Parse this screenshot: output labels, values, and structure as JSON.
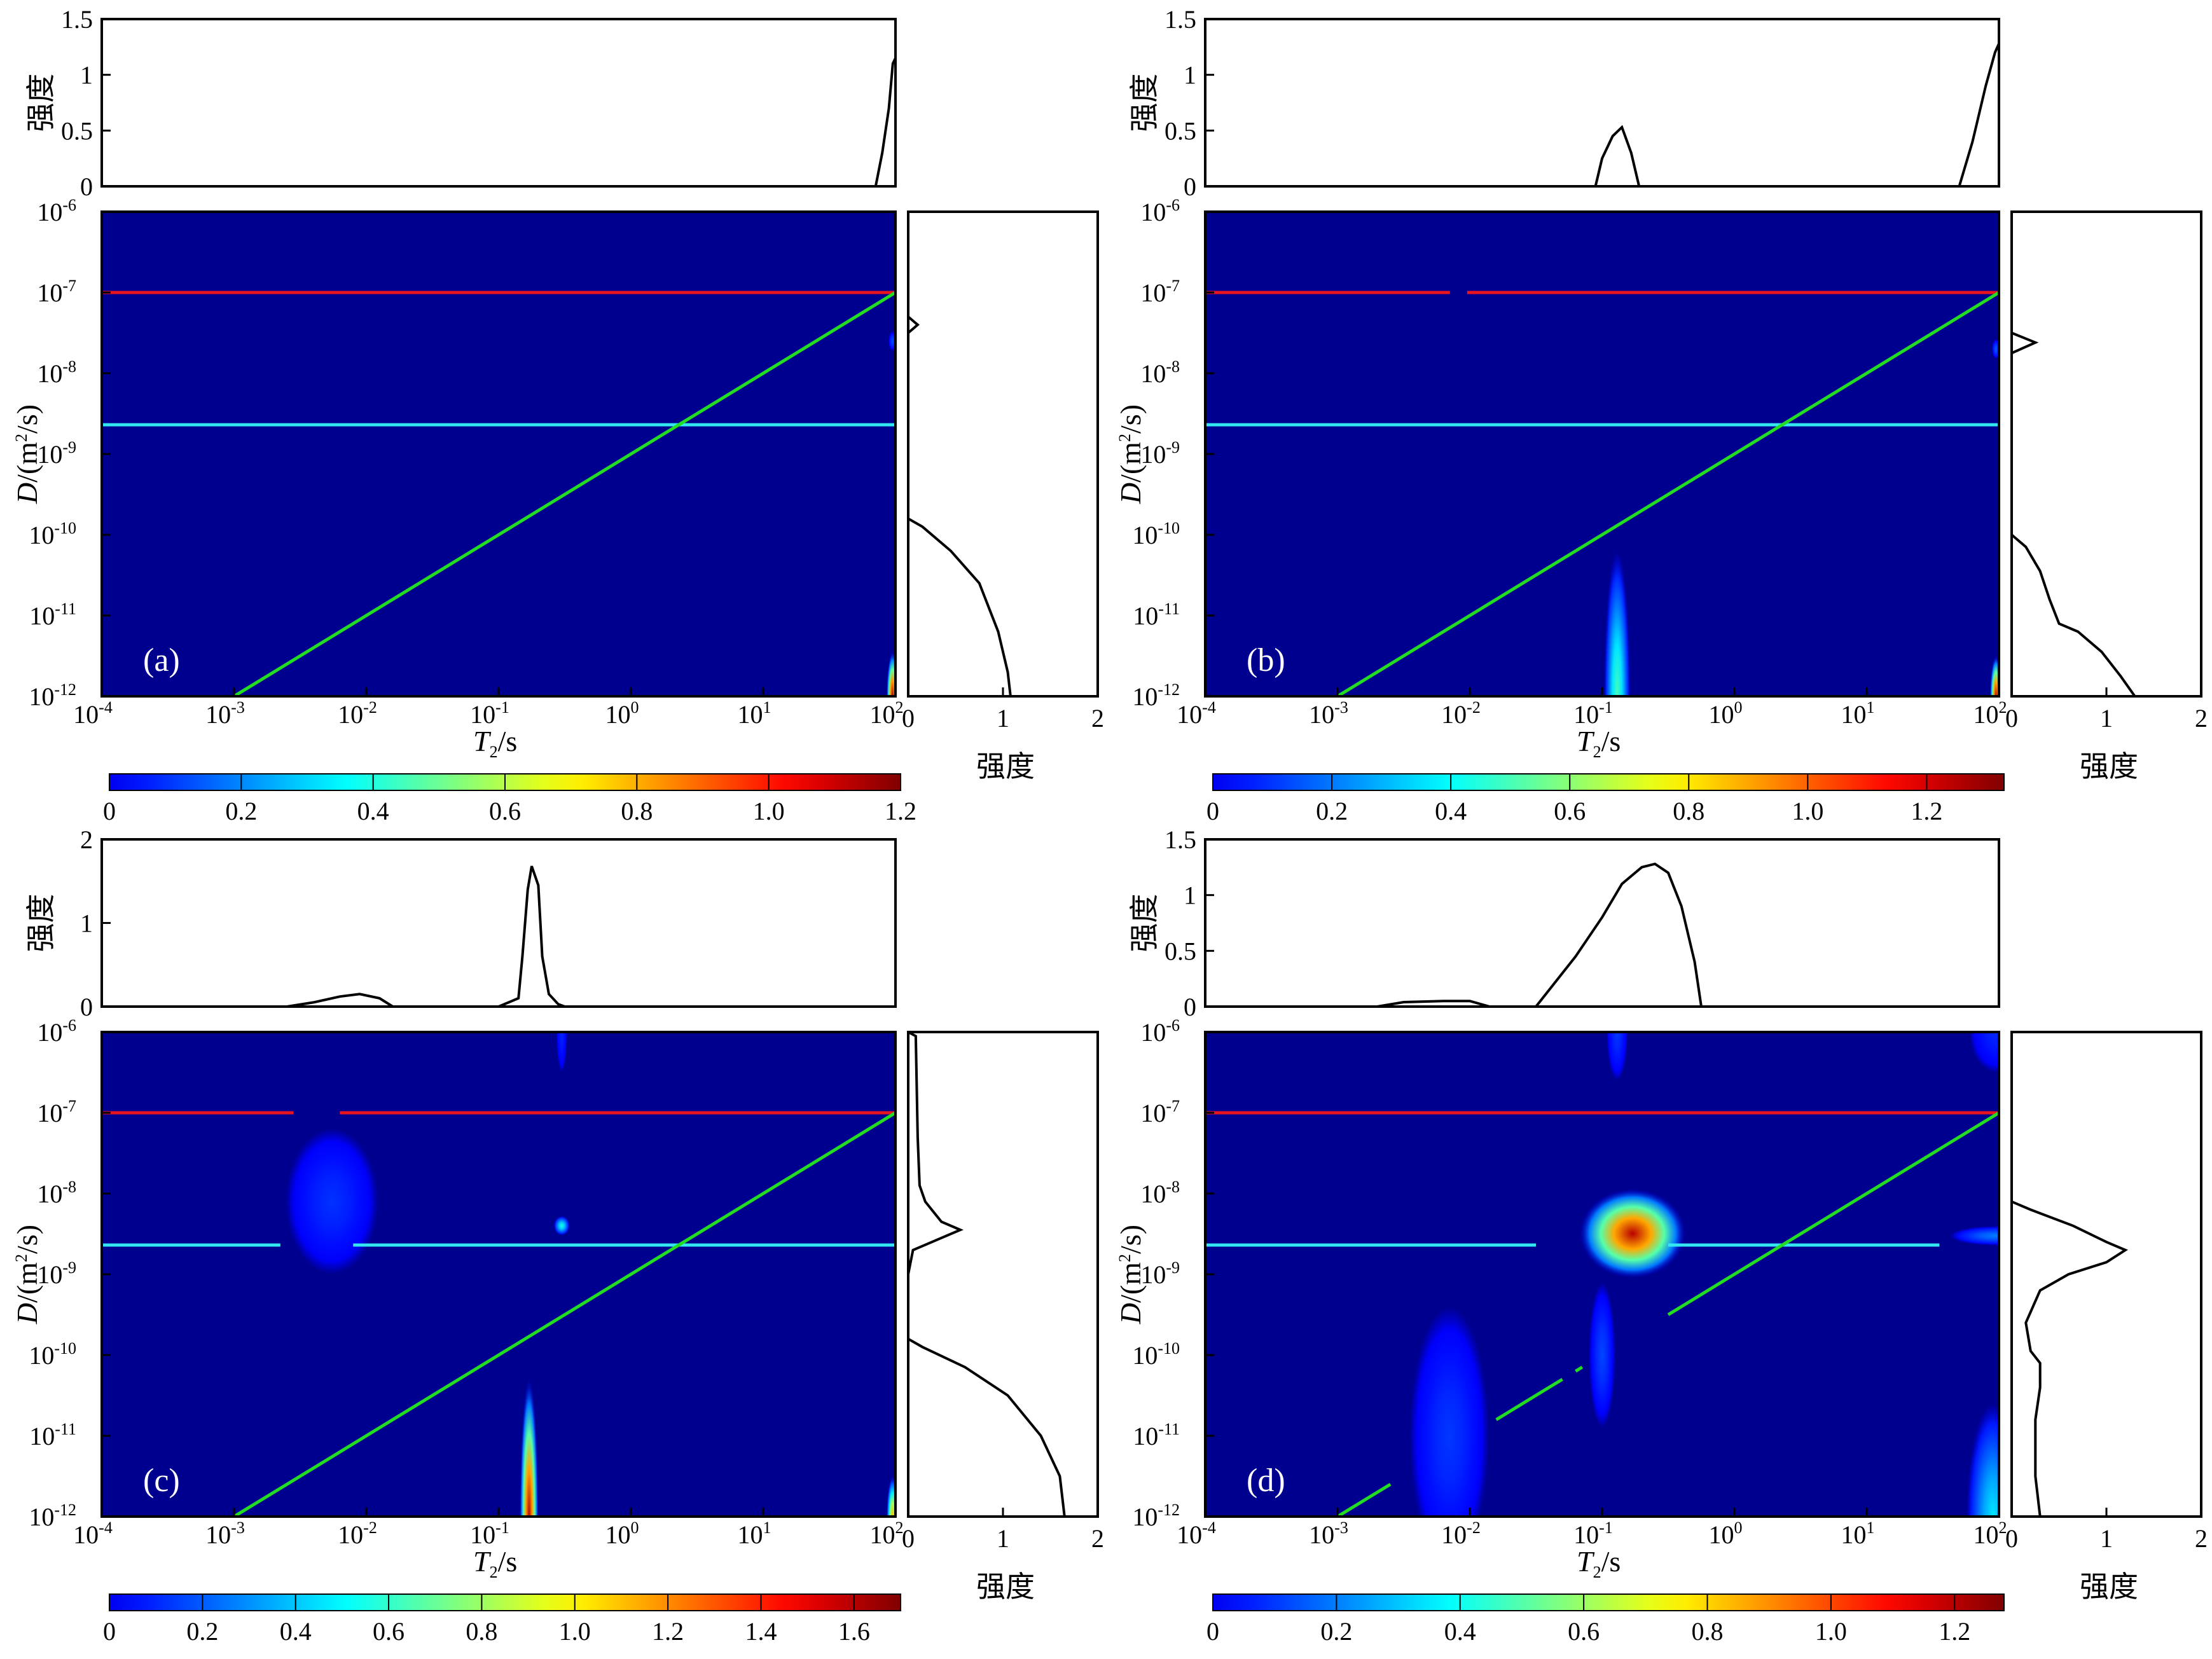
{
  "common": {
    "xlabel_italic": "T",
    "xlabel_sub": "2",
    "xlabel_rest": "/s",
    "ylabel_italic": "D",
    "ylabel_rest_pre": "/(m",
    "ylabel_sup": "2",
    "ylabel_rest_post": "/s)",
    "intensity_label": "强度",
    "x_ticks": [
      "-4",
      "-3",
      "-2",
      "-1",
      "0",
      "1",
      "2"
    ],
    "y_ticks": [
      "-12",
      "-11",
      "-10",
      "-9",
      "-8",
      "-7",
      "-6"
    ],
    "side_ticks": [
      "0",
      "1",
      "2"
    ]
  },
  "colors": {
    "background_map": "#00008f",
    "red_line": "#e8141e",
    "cyan_line": "#33e6f0",
    "green_line": "#22dd22",
    "profile": "#000000"
  },
  "chart_data": [
    {
      "panel_label": "(a)",
      "type": "heatmap",
      "x_scale": "log",
      "xlim": [
        0.0001,
        100
      ],
      "y_scale": "log",
      "ylim": [
        1e-12,
        1e-06
      ],
      "top_ylim": [
        0,
        1.5
      ],
      "top_ticks": [
        "0",
        "0.5",
        "1",
        "1.5"
      ],
      "side_xlim": [
        0,
        2
      ],
      "colorbar": {
        "range": [
          0,
          1.2
        ],
        "ticks": [
          "0",
          "0.2",
          "0.4",
          "0.6",
          "0.8",
          "1.0",
          "1.2"
        ]
      },
      "lines": {
        "red_D": 1e-07,
        "cyan_D": 2.3e-09,
        "green": [
          [
            0.001,
            1e-12
          ],
          [
            100,
            1e-07
          ]
        ],
        "red_gaps": [],
        "cyan_gaps": [],
        "green_gaps": []
      },
      "blobs": [
        {
          "T2": 95,
          "D": 1e-12,
          "halfWidthDec": 0.045,
          "halfHeightDec": 0.55,
          "intensity": 1.15
        },
        {
          "T2": 95,
          "D": 2.5e-08,
          "halfWidthDec": 0.03,
          "halfHeightDec": 0.12,
          "intensity": 0.12
        }
      ],
      "t2_profile": [
        [
          -4,
          0
        ],
        [
          1.85,
          0
        ],
        [
          1.9,
          0.3
        ],
        [
          1.95,
          0.7
        ],
        [
          1.98,
          1.1
        ],
        [
          2,
          1.15
        ]
      ],
      "d_profile": [
        [
          0,
          -6
        ],
        [
          0,
          -7.3
        ],
        [
          0.1,
          -7.4
        ],
        [
          0,
          -7.5
        ],
        [
          0,
          -9.8
        ],
        [
          0.15,
          -9.9
        ],
        [
          0.45,
          -10.2
        ],
        [
          0.75,
          -10.6
        ],
        [
          0.95,
          -11.2
        ],
        [
          1.05,
          -11.7
        ],
        [
          1.08,
          -12
        ]
      ]
    },
    {
      "panel_label": "(b)",
      "type": "heatmap",
      "x_scale": "log",
      "xlim": [
        0.0001,
        100
      ],
      "y_scale": "log",
      "ylim": [
        1e-12,
        1e-06
      ],
      "top_ylim": [
        0,
        1.5
      ],
      "top_ticks": [
        "0",
        "0.5",
        "1",
        "1.5"
      ],
      "side_xlim": [
        0,
        2
      ],
      "colorbar": {
        "range": [
          0,
          1.33
        ],
        "ticks": [
          "0",
          "0.2",
          "0.4",
          "0.6",
          "0.8",
          "1.0",
          "1.2"
        ]
      },
      "lines": {
        "red_D": 1e-07,
        "cyan_D": 2.3e-09,
        "green": [
          [
            0.001,
            1e-12
          ],
          [
            100,
            1e-07
          ]
        ],
        "red_gaps": [
          [
            -2.15,
            -2.02
          ]
        ],
        "cyan_gaps": [],
        "green_gaps": []
      },
      "blobs": [
        {
          "T2": 0.13,
          "D": 1e-12,
          "halfWidthDec": 0.1,
          "halfHeightDec": 1.8,
          "intensity": 0.5
        },
        {
          "T2": 95,
          "D": 1e-12,
          "halfWidthDec": 0.045,
          "halfHeightDec": 0.5,
          "intensity": 1.25
        },
        {
          "T2": 95,
          "D": 2e-08,
          "halfWidthDec": 0.03,
          "halfHeightDec": 0.12,
          "intensity": 0.15
        }
      ],
      "t2_profile": [
        [
          -4,
          0
        ],
        [
          -1.05,
          0
        ],
        [
          -1.0,
          0.25
        ],
        [
          -0.92,
          0.45
        ],
        [
          -0.85,
          0.53
        ],
        [
          -0.78,
          0.3
        ],
        [
          -0.72,
          0
        ],
        [
          1.7,
          0
        ],
        [
          1.8,
          0.4
        ],
        [
          1.9,
          0.9
        ],
        [
          1.97,
          1.2
        ],
        [
          2,
          1.28
        ]
      ],
      "d_profile": [
        [
          0,
          -6
        ],
        [
          0,
          -7.5
        ],
        [
          0.25,
          -7.62
        ],
        [
          0,
          -7.75
        ],
        [
          0,
          -10
        ],
        [
          0.15,
          -10.15
        ],
        [
          0.3,
          -10.45
        ],
        [
          0.4,
          -10.8
        ],
        [
          0.5,
          -11.1
        ],
        [
          0.7,
          -11.2
        ],
        [
          0.95,
          -11.45
        ],
        [
          1.15,
          -11.75
        ],
        [
          1.3,
          -12
        ]
      ]
    },
    {
      "panel_label": "(c)",
      "type": "heatmap",
      "x_scale": "log",
      "xlim": [
        0.0001,
        100
      ],
      "y_scale": "log",
      "ylim": [
        1e-12,
        1e-06
      ],
      "top_ylim": [
        0,
        2
      ],
      "top_ticks": [
        "0",
        "1",
        "2"
      ],
      "side_xlim": [
        0,
        2
      ],
      "colorbar": {
        "range": [
          0,
          1.7
        ],
        "ticks": [
          "0",
          "0.2",
          "0.4",
          "0.6",
          "0.8",
          "1.0",
          "1.2",
          "1.4",
          "1.6"
        ]
      },
      "lines": {
        "red_D": 1e-07,
        "cyan_D": 2.3e-09,
        "green": [
          [
            0.001,
            1e-12
          ],
          [
            100,
            1e-07
          ]
        ],
        "red_gaps": [
          [
            -2.55,
            -2.2
          ]
        ],
        "cyan_gaps": [
          [
            -2.65,
            -2.1
          ]
        ],
        "green_gaps": []
      },
      "blobs": [
        {
          "T2": 0.17,
          "D": 1e-12,
          "halfWidthDec": 0.07,
          "halfHeightDec": 1.7,
          "intensity": 1.6
        },
        {
          "T2": 0.0055,
          "D": 8e-09,
          "halfWidthDec": 0.35,
          "halfHeightDec": 0.9,
          "intensity": 0.12
        },
        {
          "T2": 0.3,
          "D": 4e-09,
          "halfWidthDec": 0.06,
          "halfHeightDec": 0.12,
          "intensity": 0.55
        },
        {
          "T2": 0.3,
          "D": 1e-06,
          "halfWidthDec": 0.04,
          "halfHeightDec": 0.5,
          "intensity": 0.1
        },
        {
          "T2": 95,
          "D": 1e-12,
          "halfWidthDec": 0.045,
          "halfHeightDec": 0.5,
          "intensity": 1.1
        }
      ],
      "t2_profile": [
        [
          -4,
          0
        ],
        [
          -2.6,
          0
        ],
        [
          -2.4,
          0.05
        ],
        [
          -2.2,
          0.12
        ],
        [
          -2.05,
          0.15
        ],
        [
          -1.9,
          0.1
        ],
        [
          -1.8,
          0
        ],
        [
          -1.0,
          0
        ],
        [
          -0.85,
          0.1
        ],
        [
          -0.82,
          0.6
        ],
        [
          -0.78,
          1.4
        ],
        [
          -0.75,
          1.68
        ],
        [
          -0.7,
          1.45
        ],
        [
          -0.67,
          0.6
        ],
        [
          -0.62,
          0.15
        ],
        [
          -0.55,
          0.03
        ],
        [
          -0.5,
          0
        ],
        [
          2,
          0
        ]
      ],
      "d_profile": [
        [
          0,
          -6
        ],
        [
          0.08,
          -6.05
        ],
        [
          0.1,
          -7.3
        ],
        [
          0.12,
          -7.9
        ],
        [
          0.18,
          -8.1
        ],
        [
          0.35,
          -8.35
        ],
        [
          0.55,
          -8.45
        ],
        [
          0.25,
          -8.6
        ],
        [
          0.05,
          -8.7
        ],
        [
          0,
          -9
        ],
        [
          0,
          -9.8
        ],
        [
          0.15,
          -9.9
        ],
        [
          0.6,
          -10.15
        ],
        [
          1.05,
          -10.5
        ],
        [
          1.4,
          -11.0
        ],
        [
          1.6,
          -11.5
        ],
        [
          1.65,
          -12
        ]
      ]
    },
    {
      "panel_label": "(d)",
      "type": "heatmap",
      "x_scale": "log",
      "xlim": [
        0.0001,
        100
      ],
      "y_scale": "log",
      "ylim": [
        1e-12,
        1e-06
      ],
      "top_ylim": [
        0,
        1.5
      ],
      "top_ticks": [
        "0",
        "0.5",
        "1",
        "1.5"
      ],
      "side_xlim": [
        0,
        2
      ],
      "colorbar": {
        "range": [
          0,
          1.28
        ],
        "ticks": [
          "0",
          "0.2",
          "0.4",
          "0.6",
          "0.8",
          "1.0",
          "1.2"
        ]
      },
      "lines": {
        "red_D": 1e-07,
        "cyan_D": 2.3e-09,
        "green": [
          [
            0.001,
            1e-12
          ],
          [
            100,
            1e-07
          ]
        ],
        "red_gaps": [],
        "cyan_gaps": [
          [
            -1.5,
            -0.5
          ],
          [
            1.55,
            2
          ]
        ],
        "green_gaps": [
          [
            -2.6,
            -1.8
          ],
          [
            -1.3,
            -1.2
          ],
          [
            -1.15,
            -0.5
          ]
        ]
      },
      "blobs": [
        {
          "T2": 0.17,
          "D": 3.2e-09,
          "halfWidthDec": 0.4,
          "halfHeightDec": 0.55,
          "intensity": 1.2
        },
        {
          "T2": 0.1,
          "D": 1e-10,
          "halfWidthDec": 0.1,
          "halfHeightDec": 0.9,
          "intensity": 0.12
        },
        {
          "T2": 0.007,
          "D": 1e-11,
          "halfWidthDec": 0.3,
          "halfHeightDec": 1.6,
          "intensity": 0.1
        },
        {
          "T2": 0.13,
          "D": 1e-06,
          "halfWidthDec": 0.08,
          "halfHeightDec": 0.6,
          "intensity": 0.1
        },
        {
          "T2": 90,
          "D": 1e-12,
          "halfWidthDec": 0.2,
          "halfHeightDec": 1.4,
          "intensity": 0.35
        },
        {
          "T2": 95,
          "D": 3e-09,
          "halfWidthDec": 0.35,
          "halfHeightDec": 0.12,
          "intensity": 0.2
        },
        {
          "T2": 95,
          "D": 1e-06,
          "halfWidthDec": 0.2,
          "halfHeightDec": 0.5,
          "intensity": 0.08
        }
      ],
      "t2_profile": [
        [
          -4,
          0
        ],
        [
          -2.7,
          0
        ],
        [
          -2.5,
          0.04
        ],
        [
          -2.2,
          0.05
        ],
        [
          -2.0,
          0.05
        ],
        [
          -1.85,
          0
        ],
        [
          -1.5,
          0
        ],
        [
          -1.4,
          0.15
        ],
        [
          -1.2,
          0.45
        ],
        [
          -1.0,
          0.8
        ],
        [
          -0.85,
          1.1
        ],
        [
          -0.7,
          1.25
        ],
        [
          -0.6,
          1.28
        ],
        [
          -0.5,
          1.2
        ],
        [
          -0.4,
          0.9
        ],
        [
          -0.3,
          0.4
        ],
        [
          -0.25,
          0
        ],
        [
          2,
          0
        ]
      ],
      "d_profile": [
        [
          0,
          -8.1
        ],
        [
          0.2,
          -8.2
        ],
        [
          0.65,
          -8.4
        ],
        [
          1.0,
          -8.6
        ],
        [
          1.2,
          -8.7
        ],
        [
          1.0,
          -8.85
        ],
        [
          0.6,
          -9.0
        ],
        [
          0.3,
          -9.2
        ],
        [
          0.15,
          -9.6
        ],
        [
          0.2,
          -9.95
        ],
        [
          0.3,
          -10.1
        ],
        [
          0.3,
          -10.4
        ],
        [
          0.25,
          -10.8
        ],
        [
          0.25,
          -11.5
        ],
        [
          0.3,
          -12
        ]
      ]
    }
  ]
}
